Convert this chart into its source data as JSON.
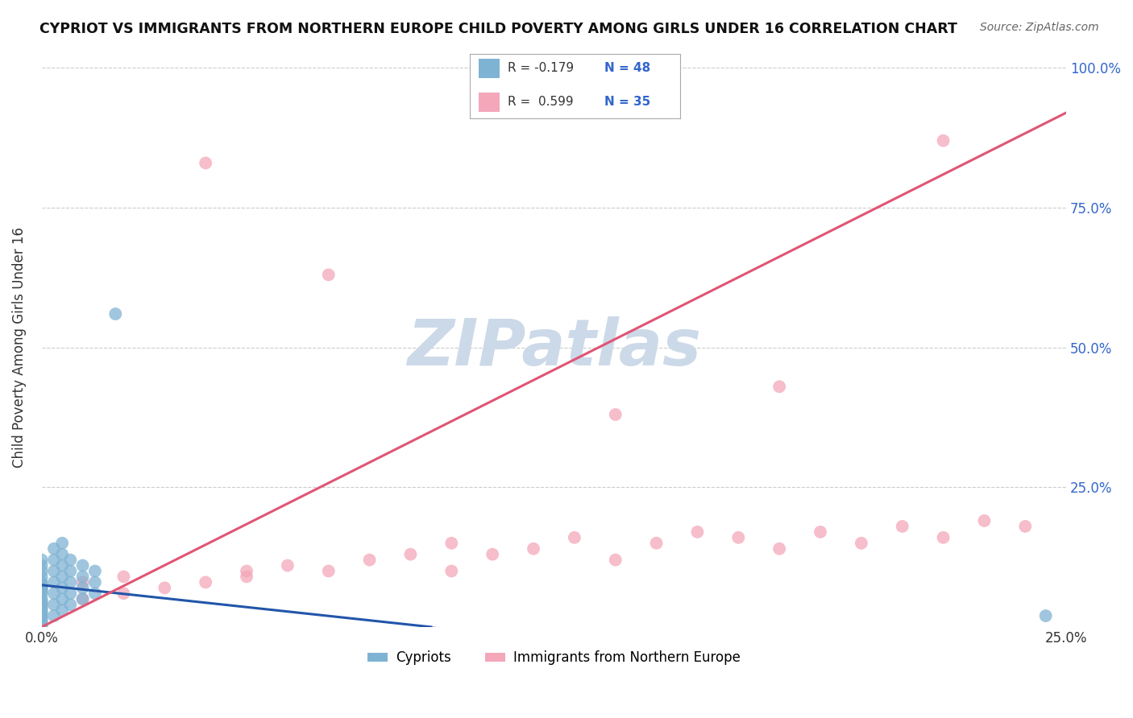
{
  "title": "CYPRIOT VS IMMIGRANTS FROM NORTHERN EUROPE CHILD POVERTY AMONG GIRLS UNDER 16 CORRELATION CHART",
  "source": "Source: ZipAtlas.com",
  "ylabel": "Child Poverty Among Girls Under 16",
  "xlim": [
    0.0,
    0.25
  ],
  "ylim": [
    0.0,
    1.0
  ],
  "xticks": [
    0.0,
    0.25
  ],
  "xticklabels": [
    "0.0%",
    "25.0%"
  ],
  "yticks": [
    0.0,
    0.25,
    0.5,
    0.75,
    1.0
  ],
  "ytick_right_labels": [
    "",
    "25.0%",
    "50.0%",
    "75.0%",
    "100.0%"
  ],
  "grid_color": "#cccccc",
  "background_color": "#ffffff",
  "watermark": "ZIPatlas",
  "watermark_color": "#ccd9e8",
  "legend_label1": "Cypriots",
  "legend_label2": "Immigrants from Northern Europe",
  "color_blue": "#7fb3d3",
  "color_pink": "#f4a7b9",
  "color_blue_dark": "#2255aa",
  "line_blue": "#2255aa",
  "line_pink": "#e05575",
  "R1_text": "R = -0.179",
  "N1_text": "N = 48",
  "R2_text": "R =  0.599",
  "N2_text": "N = 35",
  "text_color_dark": "#333333",
  "text_color_blue": "#3366cc",
  "cyp_x": [
    0.0,
    0.0,
    0.0,
    0.0,
    0.0,
    0.0,
    0.0,
    0.0,
    0.0,
    0.0,
    0.0,
    0.0,
    0.0,
    0.0,
    0.0,
    0.0,
    0.0,
    0.0,
    0.0,
    0.0,
    0.003,
    0.003,
    0.003,
    0.003,
    0.003,
    0.003,
    0.003,
    0.005,
    0.005,
    0.005,
    0.005,
    0.005,
    0.005,
    0.005,
    0.007,
    0.007,
    0.007,
    0.007,
    0.007,
    0.01,
    0.01,
    0.01,
    0.01,
    0.013,
    0.013,
    0.013,
    0.018,
    0.245
  ],
  "cyp_y": [
    0.0,
    0.005,
    0.01,
    0.015,
    0.02,
    0.025,
    0.03,
    0.035,
    0.04,
    0.045,
    0.05,
    0.06,
    0.065,
    0.07,
    0.075,
    0.08,
    0.09,
    0.1,
    0.11,
    0.12,
    0.02,
    0.04,
    0.06,
    0.08,
    0.1,
    0.12,
    0.14,
    0.03,
    0.05,
    0.07,
    0.09,
    0.11,
    0.13,
    0.15,
    0.04,
    0.06,
    0.08,
    0.1,
    0.12,
    0.05,
    0.07,
    0.09,
    0.11,
    0.06,
    0.08,
    0.1,
    0.56,
    0.02
  ],
  "imm_x": [
    0.0,
    0.0,
    0.01,
    0.01,
    0.02,
    0.02,
    0.03,
    0.04,
    0.04,
    0.05,
    0.05,
    0.06,
    0.07,
    0.07,
    0.08,
    0.09,
    0.1,
    0.1,
    0.11,
    0.12,
    0.13,
    0.14,
    0.14,
    0.15,
    0.16,
    0.17,
    0.18,
    0.18,
    0.19,
    0.2,
    0.21,
    0.22,
    0.22,
    0.23,
    0.24
  ],
  "imm_y": [
    0.04,
    0.07,
    0.05,
    0.08,
    0.06,
    0.09,
    0.07,
    0.08,
    0.83,
    0.09,
    0.1,
    0.11,
    0.1,
    0.63,
    0.12,
    0.13,
    0.1,
    0.15,
    0.13,
    0.14,
    0.16,
    0.12,
    0.38,
    0.15,
    0.17,
    0.16,
    0.14,
    0.43,
    0.17,
    0.15,
    0.18,
    0.16,
    0.87,
    0.19,
    0.18
  ],
  "blue_line_x": [
    0.0,
    0.095
  ],
  "blue_line_y": [
    0.075,
    0.0
  ],
  "pink_line_x": [
    0.0,
    0.25
  ],
  "pink_line_y": [
    0.0,
    0.92
  ]
}
